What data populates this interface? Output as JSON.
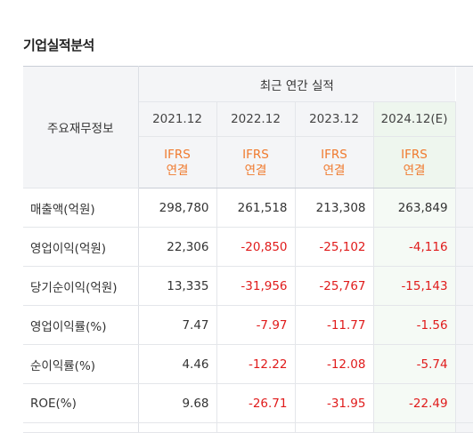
{
  "section": {
    "title": "기업실적분석"
  },
  "table": {
    "corner_label": "주요재무정보",
    "group_label": "최근 연간 실적",
    "years": [
      "2021.12",
      "2022.12",
      "2023.12",
      "2024.12(E)"
    ],
    "standard_line1": "IFRS",
    "standard_line2": "연결",
    "rows": [
      {
        "label": "매출액(억원)",
        "values": [
          "298,780",
          "261,518",
          "213,308",
          "263,849"
        ]
      },
      {
        "label": "영업이익(억원)",
        "values": [
          "22,306",
          "-20,850",
          "-25,102",
          "-4,116"
        ]
      },
      {
        "label": "당기순이익(억원)",
        "values": [
          "13,335",
          "-31,956",
          "-25,767",
          "-15,143"
        ]
      },
      {
        "label": "영업이익률(%)",
        "values": [
          "7.47",
          "-7.97",
          "-11.77",
          "-1.56"
        ]
      },
      {
        "label": "순이익률(%)",
        "values": [
          "4.46",
          "-12.22",
          "-12.08",
          "-5.74"
        ]
      },
      {
        "label": "ROE(%)",
        "values": [
          "9.68",
          "-26.71",
          "-31.95",
          "-22.49"
        ]
      }
    ]
  },
  "colors": {
    "negative": "#e01b1b",
    "standard_text": "#f07a2e",
    "estimate_bg": "#eef6ee"
  }
}
